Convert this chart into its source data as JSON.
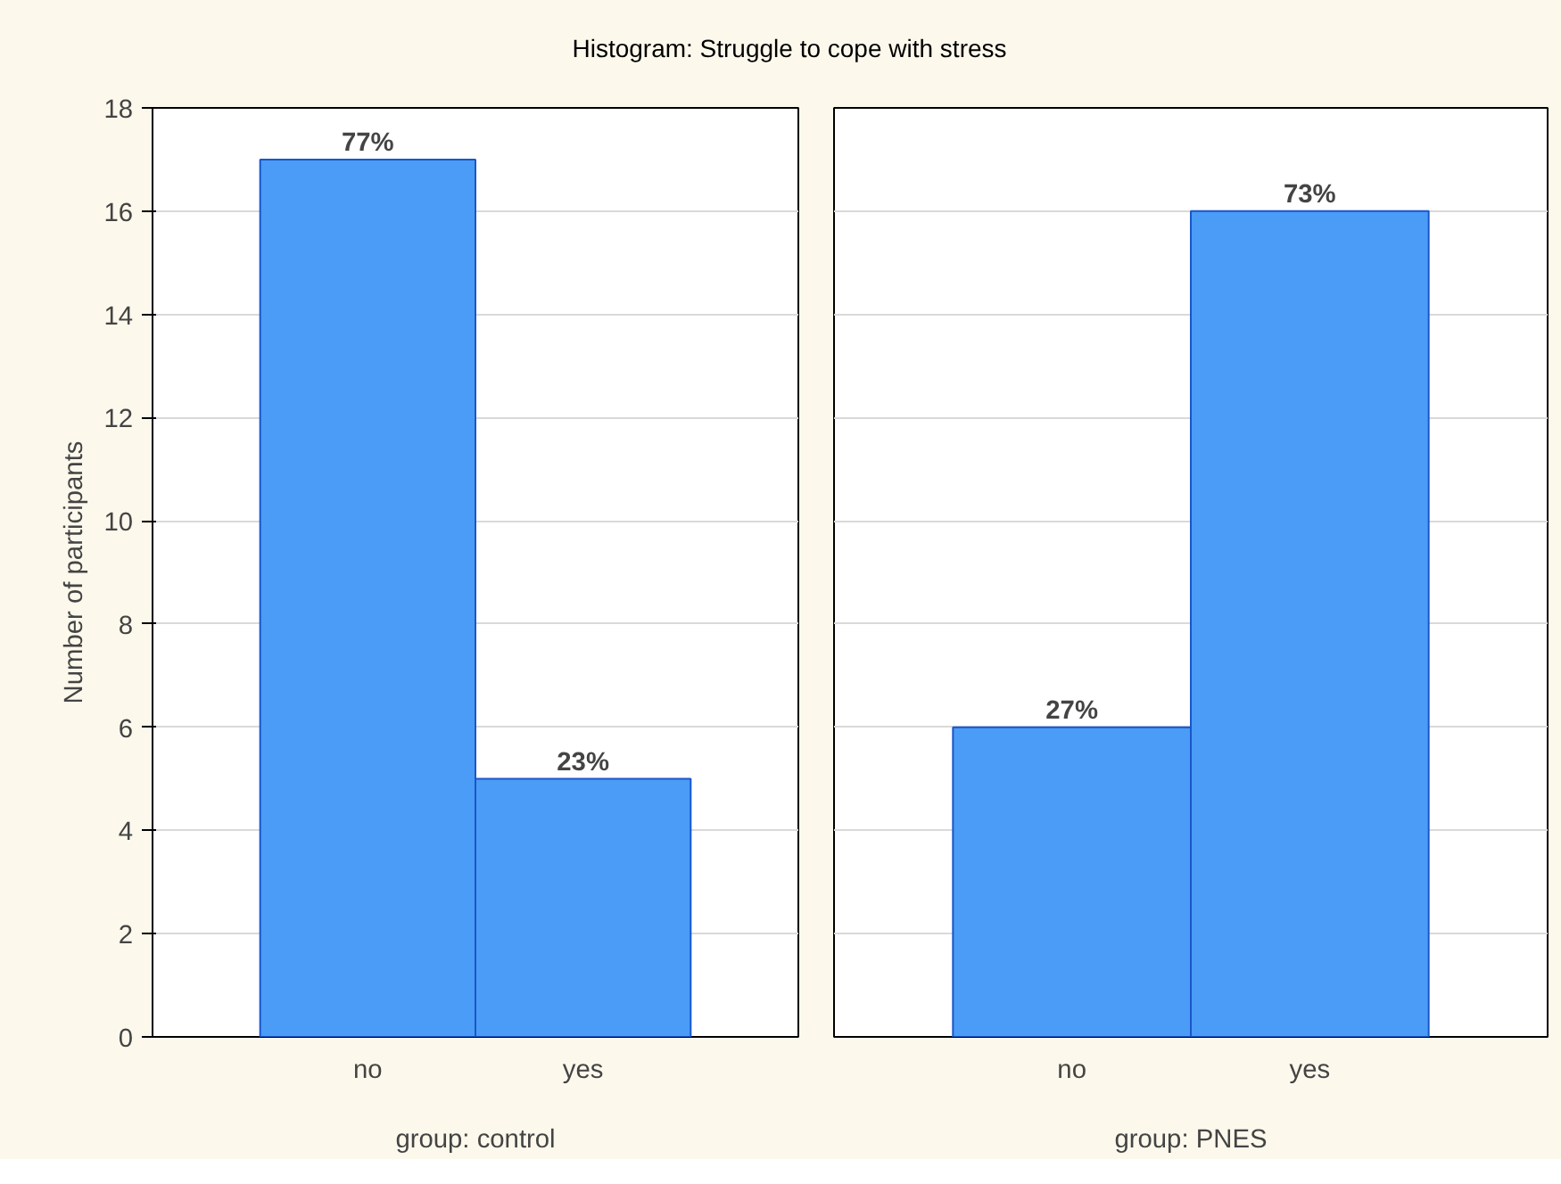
{
  "chart_data": [
    {
      "type": "bar",
      "title": "Histogram: Struggle to cope with stress",
      "ylabel": "Number of participants",
      "xlabel": "group: control",
      "categories": [
        "no",
        "yes"
      ],
      "values": [
        17,
        5
      ],
      "color": "#4a9cf6",
      "annotations": [
        {
          "text": "77%",
          "x": "no",
          "y": 17
        },
        {
          "text": "23%",
          "x": "yes",
          "y": 5
        }
      ],
      "ylim": [
        0,
        18
      ],
      "yticks": [
        0,
        2,
        4,
        6,
        8,
        10,
        12,
        14,
        16,
        18
      ],
      "grid": "y"
    },
    {
      "type": "bar",
      "xlabel": "group: PNES",
      "categories": [
        "no",
        "yes"
      ],
      "values": [
        6,
        16
      ],
      "color": "#4a9cf6",
      "annotations": [
        {
          "text": "27%",
          "x": "no",
          "y": 6
        },
        {
          "text": "73%",
          "x": "yes",
          "y": 16
        }
      ],
      "ylim": [
        0,
        18
      ],
      "yticks": [
        0,
        2,
        4,
        6,
        8,
        10,
        12,
        14,
        16,
        18
      ],
      "grid": "y",
      "tick_labels": "x"
    }
  ]
}
